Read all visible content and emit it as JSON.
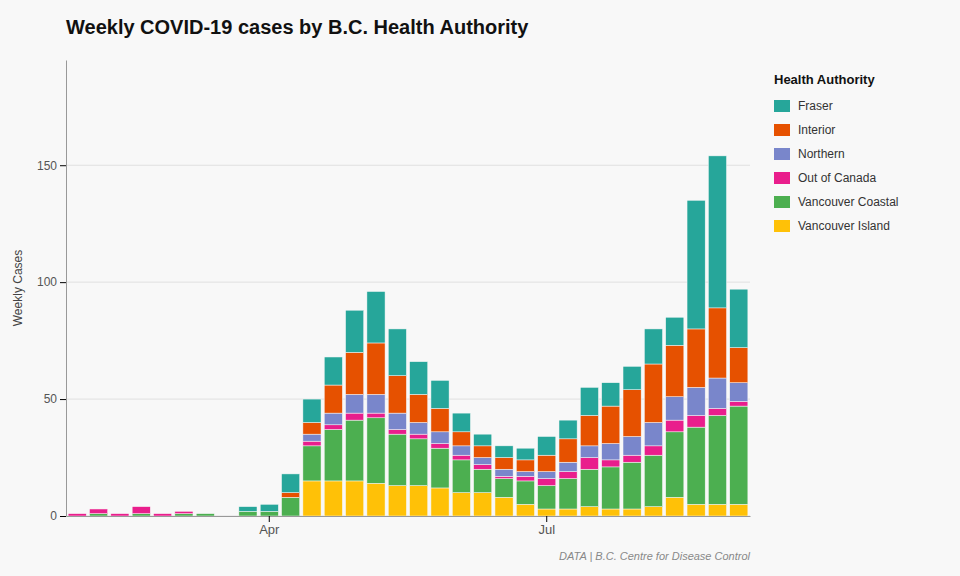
{
  "chart_data": {
    "type": "bar",
    "stacked": true,
    "title": "Weekly COVID-19 cases by B.C. Health Authority",
    "y_label": "Weekly Cases",
    "legend_title": "Health Authority",
    "annotations": [
      "DATA | B.C. Centre for Disease Control"
    ],
    "legend": "right",
    "grid": true,
    "categories": [
      null,
      null,
      null,
      null,
      null,
      null,
      null,
      null,
      null,
      "Apr",
      null,
      null,
      null,
      null,
      null,
      null,
      null,
      null,
      null,
      null,
      null,
      null,
      "Jul",
      null,
      null,
      null,
      null,
      null,
      null,
      null,
      null,
      null
    ],
    "ylim": [
      0,
      195
    ],
    "yticks": [
      0,
      50,
      100,
      150
    ],
    "series": [
      {
        "name": "Vancouver Island",
        "color": "#FFC107",
        "values": [
          0,
          0,
          0,
          0,
          0,
          0,
          0,
          0,
          0,
          0,
          0,
          15,
          15,
          15,
          14,
          13,
          13,
          12,
          10,
          10,
          8,
          5,
          3,
          3,
          4,
          3,
          3,
          4,
          8,
          5,
          5,
          5
        ]
      },
      {
        "name": "Vancouver Coastal",
        "color": "#4CAF50",
        "values": [
          0,
          1,
          0,
          1,
          0,
          1,
          1,
          0,
          2,
          2,
          8,
          15,
          22,
          26,
          28,
          22,
          20,
          17,
          14,
          10,
          8,
          10,
          10,
          13,
          16,
          18,
          20,
          22,
          28,
          33,
          38,
          42
        ]
      },
      {
        "name": "Out of Canada",
        "color": "#E91E8C",
        "values": [
          1,
          2,
          1,
          3,
          1,
          1,
          0,
          0,
          0,
          0,
          0,
          2,
          2,
          3,
          2,
          2,
          2,
          2,
          2,
          2,
          1,
          2,
          3,
          3,
          5,
          3,
          3,
          4,
          5,
          5,
          3,
          2
        ]
      },
      {
        "name": "Northern",
        "color": "#7986CB",
        "values": [
          0,
          0,
          0,
          0,
          0,
          0,
          0,
          0,
          0,
          0,
          0,
          3,
          5,
          8,
          8,
          7,
          5,
          5,
          4,
          3,
          3,
          2,
          3,
          4,
          5,
          7,
          8,
          10,
          10,
          12,
          13,
          8
        ]
      },
      {
        "name": "Interior",
        "color": "#E65100",
        "values": [
          0,
          0,
          0,
          0,
          0,
          0,
          0,
          0,
          0,
          0,
          2,
          5,
          12,
          18,
          22,
          16,
          12,
          10,
          6,
          5,
          5,
          5,
          7,
          10,
          13,
          16,
          20,
          25,
          22,
          25,
          30,
          15
        ]
      },
      {
        "name": "Fraser",
        "color": "#26A69A",
        "values": [
          0,
          0,
          0,
          0,
          0,
          0,
          0,
          0,
          2,
          3,
          8,
          10,
          12,
          18,
          22,
          20,
          14,
          12,
          8,
          5,
          5,
          5,
          8,
          8,
          12,
          10,
          10,
          15,
          12,
          55,
          65,
          25
        ]
      }
    ]
  }
}
